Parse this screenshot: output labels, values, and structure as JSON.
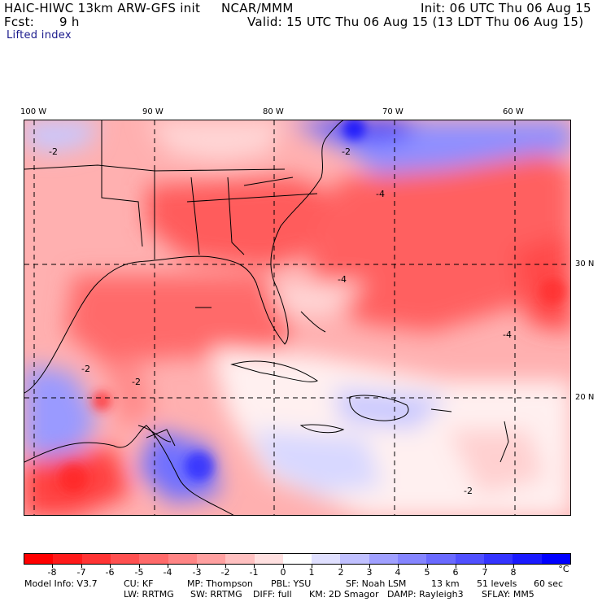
{
  "header": {
    "model_line": "HAIC-HIWC 13km ARW-GFS init",
    "org": "NCAR/MMM",
    "init": "Init: 06 UTC Thu 06 Aug 15",
    "fcst_label": "Fcst:",
    "fcst_value": "9 h",
    "valid": "Valid: 15 UTC Thu 06 Aug 15 (13 LDT Thu 06 Aug 15)",
    "field": "Lifted index"
  },
  "map": {
    "lon_labels": [
      "100 W",
      "90 W",
      "80 W",
      "70 W",
      "60 W"
    ],
    "lat_labels": [
      "30 N",
      "20 N"
    ],
    "contour_labels": [
      "-2",
      "-2",
      "-2",
      "-4",
      "-4",
      "-4",
      "-2",
      "-2"
    ]
  },
  "colorbar": {
    "colors": [
      "#ff0000",
      "#ff1a1a",
      "#ff3434",
      "#ff5050",
      "#ff6a6a",
      "#ff8585",
      "#ffa0a0",
      "#ffc0c0",
      "#ffe0e0",
      "#ffffff",
      "#e0e0ff",
      "#c0c0ff",
      "#a0a0ff",
      "#8585ff",
      "#6a6aff",
      "#5050ff",
      "#3434ff",
      "#1a1aff",
      "#0000ff"
    ],
    "labels": [
      "-8",
      "-7",
      "-6",
      "-5",
      "-4",
      "-3",
      "-2",
      "-1",
      "0",
      "1",
      "2",
      "3",
      "4",
      "5",
      "6",
      "7",
      "8"
    ],
    "unit": "°C"
  },
  "footer": {
    "line1": [
      "Model Info: V3.7",
      "CU: KF",
      "MP: Thompson",
      "PBL: YSU",
      "SF: Noah LSM",
      "13 km",
      "51 levels",
      "60 sec"
    ],
    "line2": [
      "LW: RRTMG",
      "SW: RRTMG",
      "DIFF: full",
      "KM: 2D Smagor",
      "DAMP: Rayleigh3",
      "SFLAY: MM5"
    ]
  }
}
